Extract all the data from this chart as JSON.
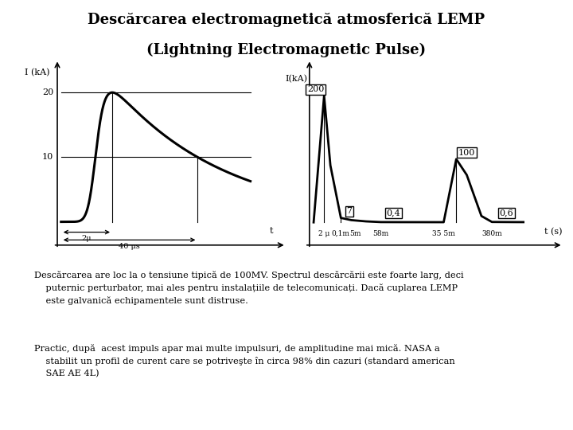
{
  "title_line1": "Descărcarea electromagnetică atmosferică LEMP",
  "title_line2": "(Lightning Electromagnetic Pulse)",
  "bg_color": "#ffffff",
  "text_color": "#000000",
  "left_chart": {
    "ylabel": "I (kA)",
    "y20": "20",
    "y10": "10",
    "xlabel": "t",
    "ann_2mu": "2μ",
    "ann_40mu": "40 μs"
  },
  "right_chart": {
    "ylabel": "I(kA)",
    "xlabel": "t (s)",
    "xtick_labels": [
      "2 μ",
      "0,1m",
      "5m",
      "58m",
      "35 5m",
      "380m"
    ],
    "peak_labels": [
      "200",
      "7",
      "0,4",
      "100",
      "0,6"
    ]
  },
  "paragraph1_indent": "Descărcarea are loc la o tensiune tipică de 100MV. Spectrul descărcării este foarte larg, deci",
  "paragraph1_cont": "    puternic perturbator, mai ales pentru instalațiile de telecomunicați. Dacă cuplarea LEMP\n    este galvanică echipamentele sunt distruse.",
  "paragraph2_indent": "Practic, după  acest impuls apar mai multe impulsuri, de amplitudine mai mică. NASA a",
  "paragraph2_cont": "    stabilit un profil de curent care se potriveşte în circa 98% din cazuri (standard american\n    SAE AE 4L)"
}
